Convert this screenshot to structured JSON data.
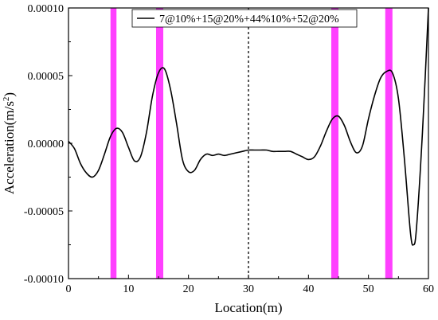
{
  "chart_data": {
    "type": "line",
    "xlabel": "Location(m)",
    "ylabel_main": "Acceleration(m/s",
    "ylabel_sup": "2",
    "ylabel_close": ")",
    "xlim": [
      0,
      60
    ],
    "ylim": [
      -0.0001,
      0.0001
    ],
    "x_ticks": [
      0,
      10,
      20,
      30,
      40,
      50,
      60
    ],
    "x_tick_labels": [
      "0",
      "10",
      "20",
      "30",
      "40",
      "50",
      "60"
    ],
    "y_ticks": [
      -0.0001,
      -5e-05,
      0,
      5e-05,
      0.0001
    ],
    "y_tick_labels": [
      "-0.00010",
      "-0.00005",
      "0.00000",
      "0.00005",
      "0.00010"
    ],
    "grid": false,
    "legend_position": "top-right",
    "vertical_reference_line_x": 30,
    "highlight_color": "#ff40ff",
    "line_color": "#000000",
    "highlight_bands": [
      [
        7,
        8
      ],
      [
        14.6,
        15.8
      ],
      [
        43.8,
        45
      ],
      [
        52.8,
        54
      ]
    ],
    "series": [
      {
        "name": "7@10%+15@20%+44%10%+52@20%",
        "x": [
          0,
          1,
          2,
          3,
          4,
          5,
          6,
          7,
          8,
          9,
          10,
          11,
          12,
          13,
          14,
          15,
          16,
          17,
          18,
          19,
          20,
          21,
          22,
          23,
          24,
          25,
          26,
          27,
          28,
          29,
          30,
          31,
          32,
          33,
          34,
          35,
          36,
          37,
          38,
          39,
          40,
          41,
          42,
          43,
          44,
          45,
          46,
          47,
          48,
          49,
          50,
          51,
          52,
          53,
          54,
          55,
          56,
          57,
          57.5,
          58,
          59,
          60
        ],
        "y": [
          1.5e-06,
          -4e-06,
          -1.5e-05,
          -2.2e-05,
          -2.5e-05,
          -2e-05,
          -8e-06,
          5e-06,
          1.1e-05,
          8e-06,
          -3e-06,
          -1.3e-05,
          -1e-05,
          8e-06,
          3.5e-05,
          5.2e-05,
          5.5e-05,
          4e-05,
          1.5e-05,
          -1.2e-05,
          -2.1e-05,
          -2e-05,
          -1.2e-05,
          -8e-06,
          -9e-06,
          -8e-06,
          -9e-06,
          -8e-06,
          -7e-06,
          -6e-06,
          -5e-06,
          -5e-06,
          -5e-06,
          -5e-06,
          -6e-06,
          -6e-06,
          -6e-06,
          -6e-06,
          -8e-06,
          -1e-05,
          -1.2e-05,
          -1e-05,
          -2e-06,
          9e-06,
          1.8e-05,
          2e-05,
          1.3e-05,
          1e-06,
          -7e-06,
          -2e-06,
          1.8e-05,
          3.5e-05,
          4.8e-05,
          5.3e-05,
          5.2e-05,
          3.3e-05,
          -1.2e-05,
          -6.6e-05,
          -7.5e-05,
          -6.3e-05,
          8e-06,
          0.0001
        ]
      }
    ]
  }
}
